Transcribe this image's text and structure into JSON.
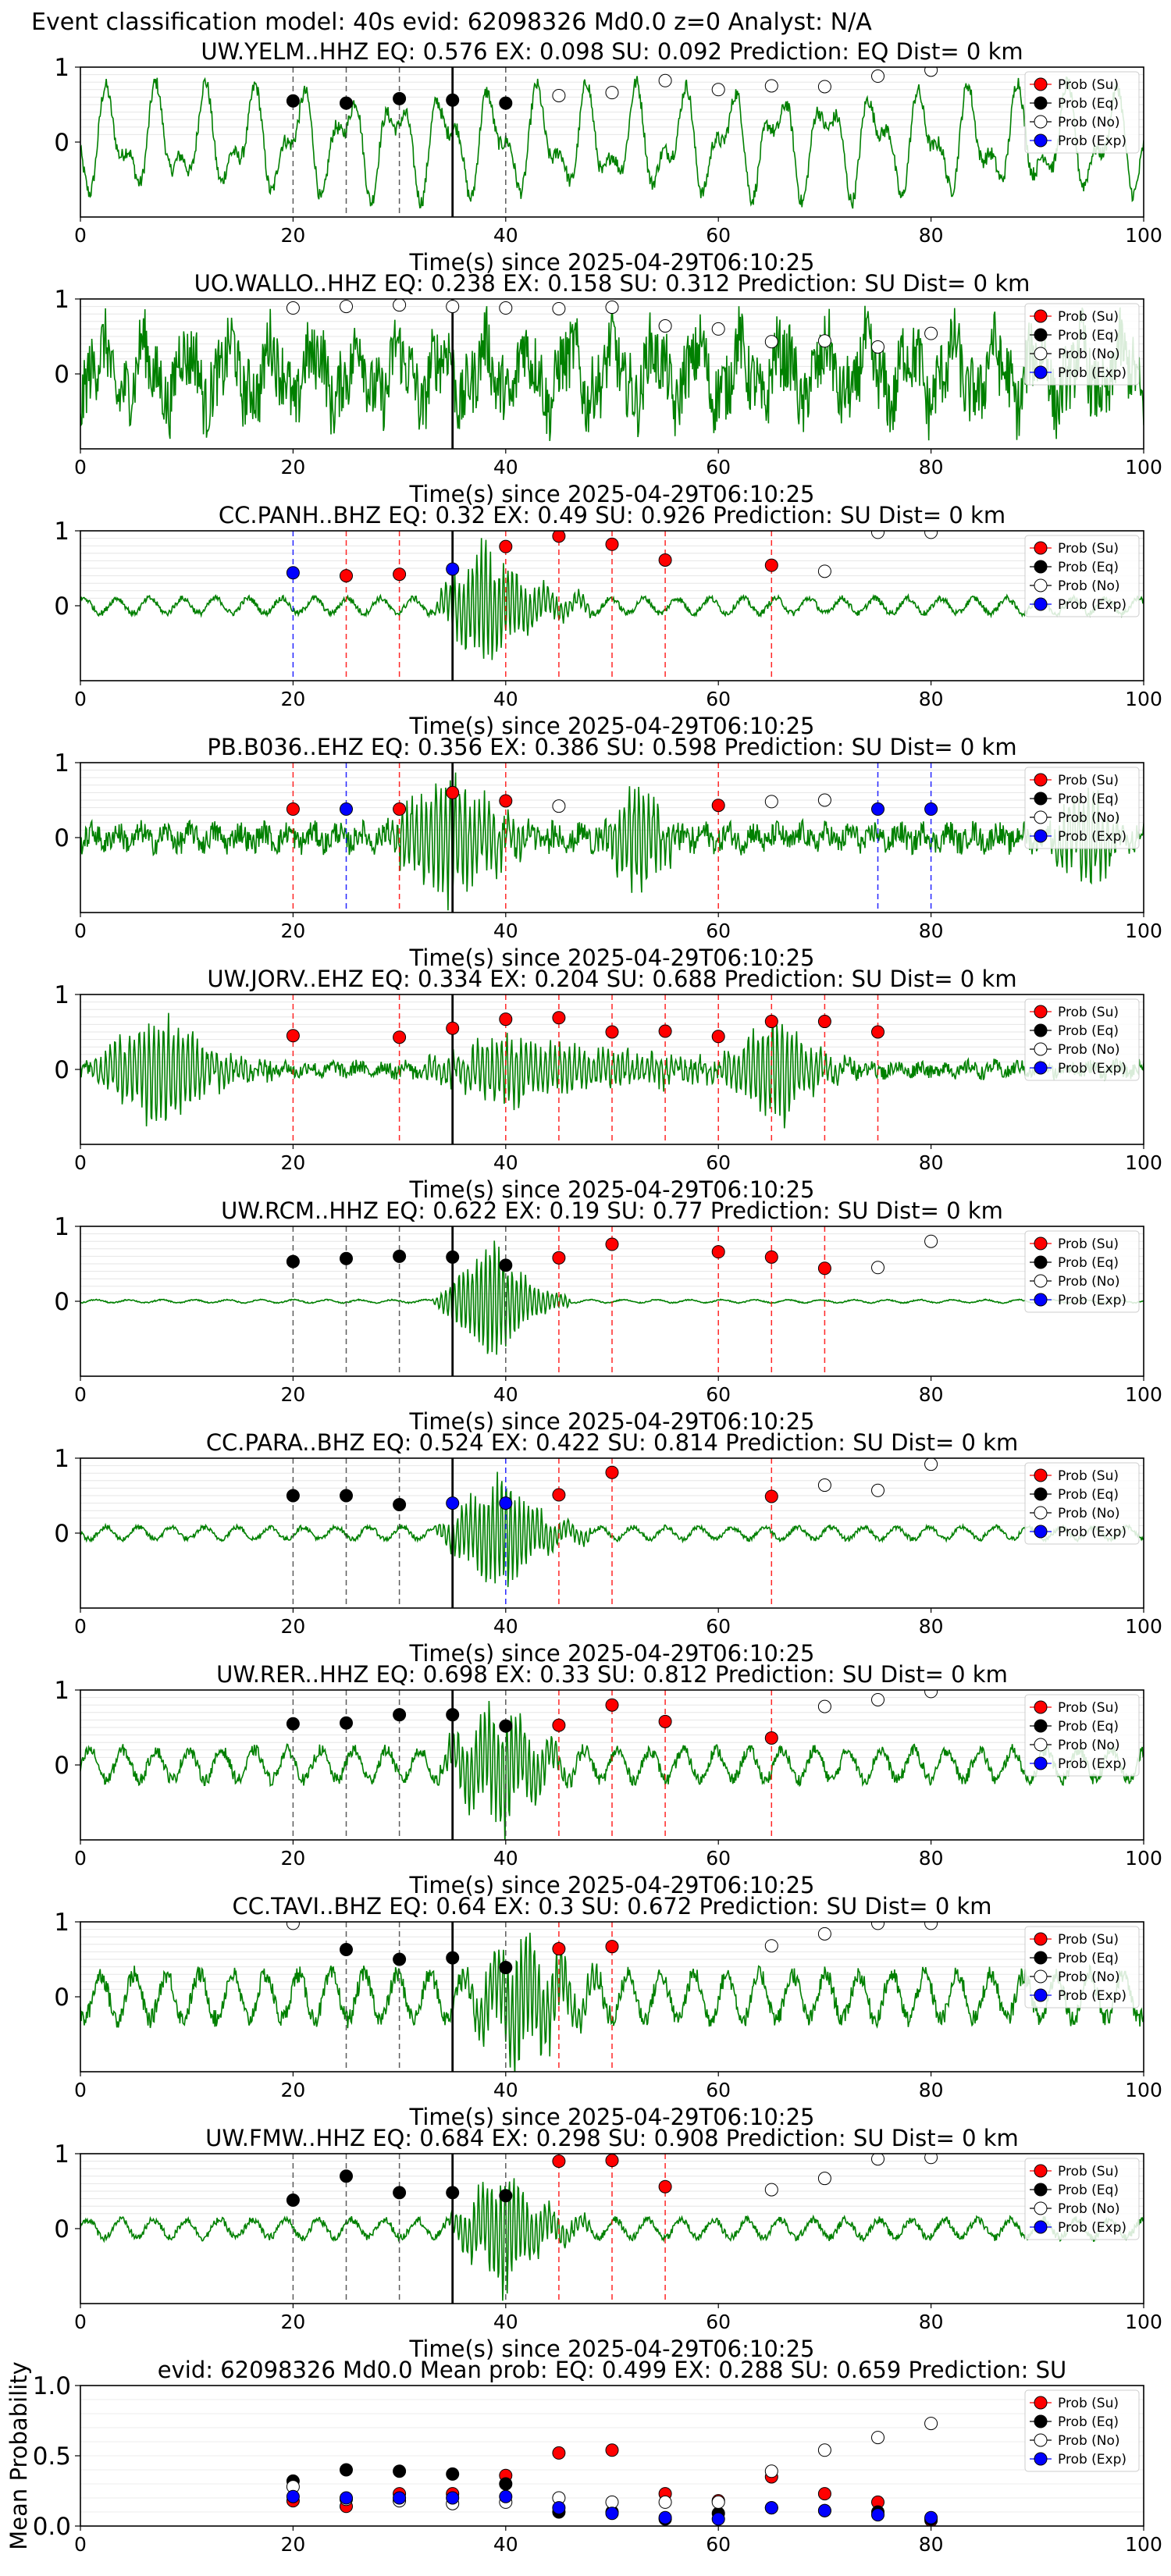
{
  "figure_title": "Event classification model: 40s evid: 62098326 Md0.0 z=0 Analyst: N/A",
  "legend_labels": [
    "Prob (Su)",
    "Prob (Eq)",
    "Prob (No)",
    "Prob (Exp)"
  ],
  "colors": {
    "waveform": "#008000",
    "su": "#ff0000",
    "eq": "#000000",
    "no": "#ffffff",
    "exp": "#0000ff",
    "su_line": "#ff0000",
    "eq_line": "#404040",
    "exp_line": "#0000ff",
    "pick_line": "#000000"
  },
  "chart_data": [
    {
      "type": "scatter",
      "title": "UW.YELM..HHZ   EQ: 0.576  EX: 0.098  SU: 0.092   Prediction: EQ    Dist= 0 km",
      "xlabel": "Time(s) since 2025-04-29T06:10:25",
      "xlim": [
        0,
        100
      ],
      "ylim": [
        -1,
        1
      ],
      "xticks": [
        "0",
        "20",
        "40",
        "60",
        "80",
        "100"
      ],
      "yticks": [
        "0",
        "1"
      ],
      "pick_time": 35,
      "waveform": {
        "style": "continuous",
        "amp": 0.9,
        "period": 4.5
      },
      "points": [
        {
          "t": 20,
          "class": "Eq",
          "p": 0.55
        },
        {
          "t": 25,
          "class": "Eq",
          "p": 0.52
        },
        {
          "t": 30,
          "class": "Eq",
          "p": 0.58
        },
        {
          "t": 35,
          "class": "Eq",
          "p": 0.56
        },
        {
          "t": 40,
          "class": "Eq",
          "p": 0.52
        },
        {
          "t": 45,
          "class": "No",
          "p": 0.62
        },
        {
          "t": 50,
          "class": "No",
          "p": 0.66
        },
        {
          "t": 55,
          "class": "No",
          "p": 0.82
        },
        {
          "t": 60,
          "class": "No",
          "p": 0.7
        },
        {
          "t": 65,
          "class": "No",
          "p": 0.75
        },
        {
          "t": 70,
          "class": "No",
          "p": 0.74
        },
        {
          "t": 75,
          "class": "No",
          "p": 0.88
        },
        {
          "t": 80,
          "class": "No",
          "p": 0.96
        }
      ]
    },
    {
      "type": "scatter",
      "title": "UO.WALLO..HHZ   EQ: 0.238  EX: 0.158  SU: 0.312   Prediction: SU    Dist= 0 km",
      "xlabel": "Time(s) since 2025-04-29T06:10:25",
      "xlim": [
        0,
        100
      ],
      "ylim": [
        -1,
        1
      ],
      "xticks": [
        "0",
        "20",
        "40",
        "60",
        "80",
        "100"
      ],
      "yticks": [
        "0",
        "1"
      ],
      "pick_time": 35,
      "waveform": {
        "style": "noisy",
        "amp": 0.75,
        "period": 4.0
      },
      "points": [
        {
          "t": 20,
          "class": "No",
          "p": 0.88
        },
        {
          "t": 25,
          "class": "No",
          "p": 0.9
        },
        {
          "t": 30,
          "class": "No",
          "p": 0.92
        },
        {
          "t": 35,
          "class": "No",
          "p": 0.9
        },
        {
          "t": 40,
          "class": "No",
          "p": 0.88
        },
        {
          "t": 45,
          "class": "No",
          "p": 0.87
        },
        {
          "t": 50,
          "class": "No",
          "p": 0.89
        },
        {
          "t": 55,
          "class": "No",
          "p": 0.64
        },
        {
          "t": 60,
          "class": "No",
          "p": 0.6
        },
        {
          "t": 65,
          "class": "No",
          "p": 0.43
        },
        {
          "t": 70,
          "class": "No",
          "p": 0.44
        },
        {
          "t": 75,
          "class": "No",
          "p": 0.36
        },
        {
          "t": 80,
          "class": "No",
          "p": 0.54
        }
      ]
    },
    {
      "type": "scatter",
      "title": "CC.PANH..BHZ   EQ: 0.32  EX: 0.49  SU: 0.926   Prediction: SU    Dist= 0 km",
      "xlabel": "Time(s) since 2025-04-29T06:10:25",
      "xlim": [
        0,
        100
      ],
      "ylim": [
        -1,
        1
      ],
      "xticks": [
        "0",
        "20",
        "40",
        "60",
        "80",
        "100"
      ],
      "yticks": [
        "0",
        "1"
      ],
      "pick_time": 35,
      "waveform": {
        "style": "event",
        "amp": 0.1,
        "burst_start": 33,
        "burst_peak": 38,
        "burst_end": 48,
        "burst_amp": 0.95
      },
      "points": [
        {
          "t": 20,
          "class": "Exp",
          "p": 0.44
        },
        {
          "t": 25,
          "class": "Su",
          "p": 0.4
        },
        {
          "t": 30,
          "class": "Su",
          "p": 0.42
        },
        {
          "t": 35,
          "class": "Exp",
          "p": 0.49
        },
        {
          "t": 40,
          "class": "Su",
          "p": 0.79
        },
        {
          "t": 45,
          "class": "Su",
          "p": 0.93
        },
        {
          "t": 50,
          "class": "Su",
          "p": 0.82
        },
        {
          "t": 55,
          "class": "Su",
          "p": 0.61
        },
        {
          "t": 65,
          "class": "Su",
          "p": 0.54
        },
        {
          "t": 70,
          "class": "No",
          "p": 0.46
        },
        {
          "t": 75,
          "class": "No",
          "p": 0.98
        },
        {
          "t": 80,
          "class": "No",
          "p": 0.98
        }
      ]
    },
    {
      "type": "scatter",
      "title": "PB.B036..EHZ   EQ: 0.356  EX: 0.386  SU: 0.598   Prediction: SU    Dist= 0 km",
      "xlabel": "Time(s) since 2025-04-29T06:10:25",
      "xlim": [
        0,
        100
      ],
      "ylim": [
        -1,
        1
      ],
      "xticks": [
        "0",
        "20",
        "40",
        "60",
        "80",
        "100"
      ],
      "yticks": [
        "0",
        "1"
      ],
      "pick_time": 35,
      "waveform": {
        "style": "multi",
        "amp": 0.2,
        "bursts": [
          [
            28,
            35,
            45,
            1.0
          ],
          [
            48,
            53,
            58,
            0.95
          ],
          [
            90,
            95,
            100,
            0.8
          ]
        ]
      },
      "points": [
        {
          "t": 20,
          "class": "Su",
          "p": 0.38
        },
        {
          "t": 25,
          "class": "Exp",
          "p": 0.38
        },
        {
          "t": 30,
          "class": "Su",
          "p": 0.38
        },
        {
          "t": 35,
          "class": "Su",
          "p": 0.6
        },
        {
          "t": 40,
          "class": "Su",
          "p": 0.49
        },
        {
          "t": 45,
          "class": "No",
          "p": 0.42
        },
        {
          "t": 60,
          "class": "Su",
          "p": 0.43
        },
        {
          "t": 65,
          "class": "No",
          "p": 0.48
        },
        {
          "t": 70,
          "class": "No",
          "p": 0.5
        },
        {
          "t": 75,
          "class": "Exp",
          "p": 0.38
        },
        {
          "t": 80,
          "class": "Exp",
          "p": 0.38
        }
      ]
    },
    {
      "type": "scatter",
      "title": "UW.JORV..EHZ   EQ: 0.334  EX: 0.204  SU: 0.688   Prediction: SU    Dist= 0 km",
      "xlabel": "Time(s) since 2025-04-29T06:10:25",
      "xlim": [
        0,
        100
      ],
      "ylim": [
        -1,
        1
      ],
      "xticks": [
        "0",
        "20",
        "40",
        "60",
        "80",
        "100"
      ],
      "yticks": [
        "0",
        "1"
      ],
      "pick_time": 35,
      "waveform": {
        "style": "multi",
        "amp": 0.12,
        "bursts": [
          [
            0,
            8,
            18,
            0.95
          ],
          [
            30,
            40,
            75,
            0.5
          ],
          [
            60,
            66,
            72,
            0.8
          ]
        ]
      },
      "points": [
        {
          "t": 20,
          "class": "Su",
          "p": 0.45
        },
        {
          "t": 30,
          "class": "Su",
          "p": 0.43
        },
        {
          "t": 35,
          "class": "Su",
          "p": 0.55
        },
        {
          "t": 40,
          "class": "Su",
          "p": 0.67
        },
        {
          "t": 45,
          "class": "Su",
          "p": 0.69
        },
        {
          "t": 50,
          "class": "Su",
          "p": 0.5
        },
        {
          "t": 55,
          "class": "Su",
          "p": 0.51
        },
        {
          "t": 60,
          "class": "Su",
          "p": 0.44
        },
        {
          "t": 65,
          "class": "Su",
          "p": 0.64
        },
        {
          "t": 70,
          "class": "Su",
          "p": 0.64
        },
        {
          "t": 75,
          "class": "Su",
          "p": 0.5
        }
      ]
    },
    {
      "type": "scatter",
      "title": "UW.RCM..HHZ   EQ: 0.622  EX: 0.19  SU: 0.77   Prediction: SU    Dist= 0 km",
      "xlabel": "Time(s) since 2025-04-29T06:10:25",
      "xlim": [
        0,
        100
      ],
      "ylim": [
        -1,
        1
      ],
      "xticks": [
        "0",
        "20",
        "40",
        "60",
        "80",
        "100"
      ],
      "yticks": [
        "0",
        "1"
      ],
      "pick_time": 35,
      "waveform": {
        "style": "event",
        "amp": 0.02,
        "burst_start": 33,
        "burst_peak": 39,
        "burst_end": 46,
        "burst_amp": 0.95
      },
      "points": [
        {
          "t": 20,
          "class": "Eq",
          "p": 0.53
        },
        {
          "t": 25,
          "class": "Eq",
          "p": 0.57
        },
        {
          "t": 30,
          "class": "Eq",
          "p": 0.6
        },
        {
          "t": 35,
          "class": "Eq",
          "p": 0.59
        },
        {
          "t": 40,
          "class": "Eq",
          "p": 0.48
        },
        {
          "t": 45,
          "class": "Su",
          "p": 0.58
        },
        {
          "t": 50,
          "class": "Su",
          "p": 0.76
        },
        {
          "t": 60,
          "class": "Su",
          "p": 0.66
        },
        {
          "t": 65,
          "class": "Su",
          "p": 0.59
        },
        {
          "t": 70,
          "class": "Su",
          "p": 0.44
        },
        {
          "t": 75,
          "class": "No",
          "p": 0.45
        },
        {
          "t": 80,
          "class": "No",
          "p": 0.8
        }
      ]
    },
    {
      "type": "scatter",
      "title": "CC.PARA..BHZ   EQ: 0.524  EX: 0.422  SU: 0.814   Prediction: SU    Dist= 0 km",
      "xlabel": "Time(s) since 2025-04-29T06:10:25",
      "xlim": [
        0,
        100
      ],
      "ylim": [
        -1,
        1
      ],
      "xticks": [
        "0",
        "20",
        "40",
        "60",
        "80",
        "100"
      ],
      "yticks": [
        "0",
        "1"
      ],
      "pick_time": 35,
      "waveform": {
        "style": "event",
        "amp": 0.08,
        "burst_start": 33,
        "burst_peak": 40,
        "burst_end": 48,
        "burst_amp": 0.9
      },
      "points": [
        {
          "t": 20,
          "class": "Eq",
          "p": 0.5
        },
        {
          "t": 25,
          "class": "Eq",
          "p": 0.5
        },
        {
          "t": 30,
          "class": "Eq",
          "p": 0.38
        },
        {
          "t": 35,
          "class": "Exp",
          "p": 0.4
        },
        {
          "t": 40,
          "class": "Exp",
          "p": 0.4
        },
        {
          "t": 45,
          "class": "Su",
          "p": 0.51
        },
        {
          "t": 50,
          "class": "Su",
          "p": 0.81
        },
        {
          "t": 65,
          "class": "Su",
          "p": 0.49
        },
        {
          "t": 70,
          "class": "No",
          "p": 0.64
        },
        {
          "t": 75,
          "class": "No",
          "p": 0.57
        },
        {
          "t": 80,
          "class": "No",
          "p": 0.92
        }
      ]
    },
    {
      "type": "scatter",
      "title": "UW.RER..HHZ   EQ: 0.698  EX: 0.33  SU: 0.812   Prediction: SU    Dist= 0 km",
      "xlabel": "Time(s) since 2025-04-29T06:10:25",
      "xlim": [
        0,
        100
      ],
      "ylim": [
        -1,
        1
      ],
      "xticks": [
        "0",
        "20",
        "40",
        "60",
        "80",
        "100"
      ],
      "yticks": [
        "0",
        "1"
      ],
      "pick_time": 35,
      "waveform": {
        "style": "event",
        "amp": 0.2,
        "burst_start": 33,
        "burst_peak": 40,
        "burst_end": 48,
        "burst_amp": 0.95
      },
      "points": [
        {
          "t": 20,
          "class": "Eq",
          "p": 0.55
        },
        {
          "t": 25,
          "class": "Eq",
          "p": 0.56
        },
        {
          "t": 30,
          "class": "Eq",
          "p": 0.67
        },
        {
          "t": 35,
          "class": "Eq",
          "p": 0.67
        },
        {
          "t": 40,
          "class": "Eq",
          "p": 0.52
        },
        {
          "t": 45,
          "class": "Su",
          "p": 0.53
        },
        {
          "t": 50,
          "class": "Su",
          "p": 0.8
        },
        {
          "t": 55,
          "class": "Su",
          "p": 0.58
        },
        {
          "t": 65,
          "class": "Su",
          "p": 0.36
        },
        {
          "t": 70,
          "class": "No",
          "p": 0.78
        },
        {
          "t": 75,
          "class": "No",
          "p": 0.87
        },
        {
          "t": 80,
          "class": "No",
          "p": 0.98
        }
      ]
    },
    {
      "type": "scatter",
      "title": "CC.TAVI..BHZ   EQ: 0.64  EX: 0.3  SU: 0.672   Prediction: SU    Dist= 0 km",
      "xlabel": "Time(s) since 2025-04-29T06:10:25",
      "xlim": [
        0,
        100
      ],
      "ylim": [
        -1,
        1
      ],
      "xticks": [
        "0",
        "20",
        "40",
        "60",
        "80",
        "100"
      ],
      "yticks": [
        "0",
        "1"
      ],
      "pick_time": 35,
      "waveform": {
        "style": "event",
        "amp": 0.3,
        "burst_start": 35,
        "burst_peak": 42,
        "burst_end": 50,
        "burst_amp": 1.0
      },
      "points": [
        {
          "t": 20,
          "class": "No",
          "p": 0.98
        },
        {
          "t": 25,
          "class": "Eq",
          "p": 0.63
        },
        {
          "t": 30,
          "class": "Eq",
          "p": 0.5
        },
        {
          "t": 35,
          "class": "Eq",
          "p": 0.52
        },
        {
          "t": 40,
          "class": "Eq",
          "p": 0.39
        },
        {
          "t": 45,
          "class": "Su",
          "p": 0.64
        },
        {
          "t": 50,
          "class": "Su",
          "p": 0.67
        },
        {
          "t": 65,
          "class": "No",
          "p": 0.68
        },
        {
          "t": 70,
          "class": "No",
          "p": 0.84
        },
        {
          "t": 75,
          "class": "No",
          "p": 0.98
        },
        {
          "t": 80,
          "class": "No",
          "p": 0.98
        }
      ]
    },
    {
      "type": "scatter",
      "title": "UW.FMW..HHZ   EQ: 0.684  EX: 0.298  SU: 0.908   Prediction: SU    Dist= 0 km",
      "xlabel": "Time(s) since 2025-04-29T06:10:25",
      "xlim": [
        0,
        100
      ],
      "ylim": [
        -1,
        1
      ],
      "xticks": [
        "0",
        "20",
        "40",
        "60",
        "80",
        "100"
      ],
      "yticks": [
        "0",
        "1"
      ],
      "pick_time": 35,
      "waveform": {
        "style": "event",
        "amp": 0.12,
        "burst_start": 34,
        "burst_peak": 40,
        "burst_end": 48,
        "burst_amp": 0.95
      },
      "points": [
        {
          "t": 20,
          "class": "Eq",
          "p": 0.38
        },
        {
          "t": 25,
          "class": "Eq",
          "p": 0.7
        },
        {
          "t": 30,
          "class": "Eq",
          "p": 0.48
        },
        {
          "t": 35,
          "class": "Eq",
          "p": 0.48
        },
        {
          "t": 40,
          "class": "Eq",
          "p": 0.44
        },
        {
          "t": 45,
          "class": "Su",
          "p": 0.9
        },
        {
          "t": 50,
          "class": "Su",
          "p": 0.91
        },
        {
          "t": 55,
          "class": "Su",
          "p": 0.56
        },
        {
          "t": 65,
          "class": "No",
          "p": 0.52
        },
        {
          "t": 70,
          "class": "No",
          "p": 0.67
        },
        {
          "t": 75,
          "class": "No",
          "p": 0.93
        },
        {
          "t": 80,
          "class": "No",
          "p": 0.95
        }
      ]
    },
    {
      "type": "scatter",
      "title": "evid: 62098326  Md0.0   Mean prob:   EQ: 0.499  EX: 0.288  SU: 0.659   Prediction: SU",
      "xlabel": "",
      "ylabel": "Mean Probability",
      "xlim": [
        0,
        100
      ],
      "ylim": [
        0,
        1
      ],
      "xticks": [
        "0",
        "20",
        "40",
        "60",
        "80",
        "100"
      ],
      "yticks": [
        "0.0",
        "0.5",
        "1.0"
      ],
      "x": [
        20,
        25,
        30,
        35,
        40,
        45,
        50,
        55,
        60,
        65,
        70,
        75,
        80
      ],
      "series": [
        {
          "name": "Prob (Su)",
          "values": [
            0.18,
            0.14,
            0.23,
            0.23,
            0.36,
            0.52,
            0.54,
            0.23,
            0.18,
            0.35,
            0.23,
            0.17,
            0.04
          ]
        },
        {
          "name": "Prob (Eq)",
          "values": [
            0.32,
            0.4,
            0.39,
            0.37,
            0.3,
            0.1,
            0.1,
            0.05,
            0.09,
            0.13,
            0.11,
            0.1,
            0.05
          ]
        },
        {
          "name": "Prob (No)",
          "values": [
            0.28,
            0.19,
            0.18,
            0.16,
            0.17,
            0.2,
            0.17,
            0.17,
            0.17,
            0.39,
            0.54,
            0.63,
            0.73
          ]
        },
        {
          "name": "Prob (Exp)",
          "values": [
            0.21,
            0.2,
            0.2,
            0.2,
            0.21,
            0.13,
            0.09,
            0.06,
            0.05,
            0.13,
            0.11,
            0.08,
            0.06
          ]
        }
      ]
    }
  ]
}
